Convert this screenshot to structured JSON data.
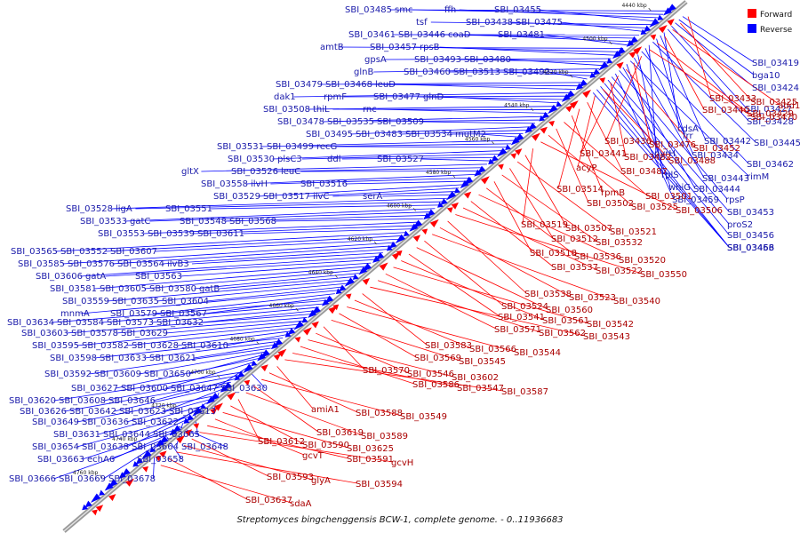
{
  "caption": "Streptomyces bingchenggensis BCW-1, complete genome. - 0..11936683",
  "legend": [
    {
      "label": "Forward",
      "color": "#ff0000"
    },
    {
      "label": "Reverse",
      "color": "#0000ff"
    }
  ],
  "colors": {
    "forward": "#ff0000",
    "reverse": "#0000ff",
    "backbone": "#888888",
    "text": "#111111"
  },
  "ticks": [
    "4440 kbp",
    "4500 kbp",
    "4520 kbp",
    "4540 kbp",
    "4560 kbp",
    "4580 kbp",
    "4600 kbp",
    "4620 kbp",
    "4640 kbp",
    "4660 kbp",
    "4680 kbp",
    "4700 kbp",
    "4720 kbp",
    "4740 kbp",
    "4760 kbp"
  ],
  "reverse_genes": [
    "SBI_03485",
    "smc",
    "ffh",
    "SBI_03455",
    "tsf",
    "SBI_03438",
    "SBI_03475",
    "SBI_03461",
    "SBI_03446",
    "coaD",
    "SBI_03481",
    "amtB",
    "SBI_03457",
    "rpsB",
    "gpsA",
    "SBI_03493",
    "SBI_03480",
    "glnB",
    "SBI_03460",
    "SBI_03513",
    "SBI_03492",
    "SBI_03479",
    "SBI_03468",
    "leuD",
    "dak1",
    "rpmF",
    "SBI_03477",
    "glnD",
    "SBI_03508",
    "thiL",
    "rnc",
    "SBI_03478",
    "SBI_03535",
    "SBI_03509",
    "SBI_03495",
    "SBI_03483",
    "SBI_03534",
    "mutM2",
    "SBI_03531",
    "SBI_03499",
    "recG",
    "SBI_03530",
    "plsC3",
    "ddl",
    "SBI_03527",
    "gltX",
    "SBI_03526",
    "leuC",
    "SBI_03558",
    "ilvH",
    "SBI_03516",
    "SBI_03529",
    "SBI_03517",
    "ilvC",
    "serA",
    "SBI_03528",
    "ligA",
    "SBI_03551",
    "SBI_03533",
    "gatC",
    "SBI_03548",
    "SBI_03568",
    "SBI_03553",
    "SBI_03539",
    "SBI_03611",
    "SBI_03565",
    "SBI_03552",
    "SBI_03607",
    "SBI_03585",
    "SBI_03576",
    "SBI_03564",
    "ilvB3",
    "SBI_03606",
    "gatA",
    "SBI_03563",
    "SBI_03581",
    "SBI_03605",
    "SBI_03580",
    "gatB",
    "SBI_03559",
    "SBI_03635",
    "SBI_03604",
    "mnmA",
    "SBI_03579",
    "SBI_03567",
    "SBI_03634",
    "SBI_03584",
    "SBI_03573",
    "SBI_03632",
    "SBI_03603",
    "SBI_03578",
    "SBI_03629",
    "SBI_03595",
    "SBI_03582",
    "SBI_03628",
    "SBI_03610",
    "SBI_03598",
    "SBI_03633",
    "SBI_03621",
    "SBI_03592",
    "SBI_03609",
    "SBI_03650",
    "SBI_03627",
    "SBI_03600",
    "SBI_03647",
    "SBI_03630",
    "SBI_03620",
    "SBI_03608",
    "SBI_03646",
    "SBI_03626",
    "SBI_03642",
    "SBI_03623",
    "SBI_03613",
    "SBI_03649",
    "SBI_03636",
    "SBI_03622",
    "SBI_03631",
    "SBI_03644",
    "SBI_03665",
    "SBI_03654",
    "SBI_03638",
    "SBI_03664",
    "SBI_03648",
    "SBI_03663",
    "echA6",
    "SBI_03658",
    "SBI_03666",
    "SBI_03669",
    "SBI_03678",
    "SBI_03419",
    "bga10",
    "SBI_03424",
    "SBI_03427",
    "SBI_03428",
    "cdsA",
    "SBI_03442",
    "frr",
    "SBI_03445",
    "pyrH",
    "SBI_03434",
    "SBI_03462",
    "rplS",
    "SBI_03443",
    "rimM",
    "whiG",
    "SBI_03444",
    "rpsP",
    "SBI_03459",
    "SBI_03453",
    "proS2",
    "SBI_03456",
    "SBI_03458",
    "SBI_03463",
    "SBI_03466"
  ],
  "forward_genes": [
    "SBI_03433",
    "SBI_03425",
    "add1",
    "SBI_03440",
    "SBI_03429",
    "SBI_03470",
    "SBI_03436",
    "SBI_03476",
    "SBI_03452",
    "SBI_03441",
    "SBI_03482",
    "SBI_03488",
    "acyP",
    "SBI_03487",
    "SBI_03514",
    "rpmB",
    "SBI_03501",
    "SBI_03502",
    "SBI_03525",
    "SBI_03506",
    "SBI_03519",
    "SBI_03507",
    "SBI_03521",
    "SBI_03512",
    "SBI_03532",
    "SBI_03518",
    "SBI_03536",
    "SBI_03520",
    "SBI_03537",
    "SBI_03522",
    "SBI_03550",
    "SBI_03538",
    "SBI_03523",
    "SBI_03540",
    "SBI_03524",
    "SBI_03560",
    "SBI_03541",
    "SBI_03561",
    "SBI_03542",
    "SBI_03571",
    "SBI_03562",
    "SBI_03543",
    "SBI_03583",
    "SBI_03566",
    "SBI_03544",
    "SBI_03569",
    "SBI_03545",
    "SBI_03570",
    "SBI_03546",
    "SBI_03602",
    "SBI_03586",
    "SBI_03547",
    "SBI_03587",
    "amiA1",
    "SBI_03588",
    "SBI_03549",
    "SBI_03619",
    "SBI_03589",
    "SBI_03612",
    "SBI_03590",
    "SBI_03625",
    "gcvT",
    "SBI_03591",
    "gcvH",
    "SBI_03593",
    "glyA",
    "SBI_03594",
    "SBI_03637",
    "sdaA"
  ]
}
